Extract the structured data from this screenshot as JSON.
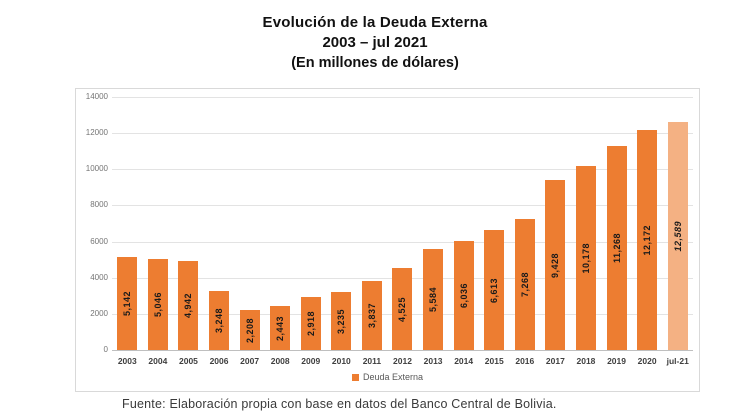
{
  "title": {
    "line1": "Evolución de la Deuda Externa",
    "line2": "2003 – jul 2021",
    "line3": "(En millones de dólares)"
  },
  "chart_data": {
    "type": "bar",
    "title": "Evolución de la Deuda Externa 2003 – jul 2021 (En millones de dólares)",
    "categories": [
      "2003",
      "2004",
      "2005",
      "2006",
      "2007",
      "2008",
      "2009",
      "2010",
      "2011",
      "2012",
      "2013",
      "2014",
      "2015",
      "2016",
      "2017",
      "2018",
      "2019",
      "2020",
      "jul-21"
    ],
    "values": [
      5142,
      5046,
      4942,
      3248,
      2208,
      2443,
      2918,
      3235,
      3837,
      4525,
      5584,
      6036,
      6613,
      7268,
      9428,
      10178,
      11268,
      12172,
      12589
    ],
    "value_labels": [
      "5,142",
      "5,046",
      "4,942",
      "3,248",
      "2,208",
      "2,443",
      "2,918",
      "3,235",
      "3,837",
      "4,525",
      "5,584",
      "6,036",
      "6,613",
      "7,268",
      "9,428",
      "10,178",
      "11,268",
      "12,172",
      "12,589"
    ],
    "xlabel": "",
    "ylabel": "",
    "ylim": [
      0,
      14000
    ],
    "ytick_labels": [
      "0",
      "2000",
      "4000",
      "6000",
      "8000",
      "10000",
      "12000",
      "14000"
    ],
    "grid": true,
    "legend_position": "bottom",
    "bar_color": "#ED7D31",
    "last_bar_color": "#F4B183",
    "last_bar_label_style": "italic"
  },
  "legend": {
    "label": "Deuda Externa",
    "swatch_color": "#ED7D31"
  },
  "footer": {
    "source": "Fuente: Elaboración propia con base en datos del Banco Central de Bolivia."
  }
}
